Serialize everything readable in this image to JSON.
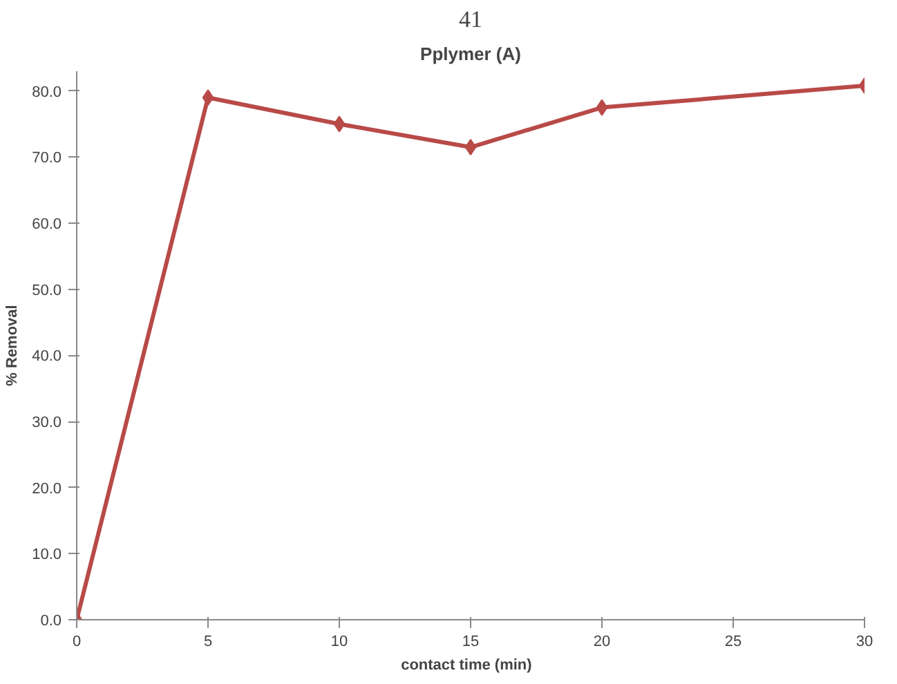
{
  "chart_data": {
    "type": "line",
    "title": "Pplymer (A)",
    "xlabel": "contact time   (min)",
    "ylabel": "% Removal",
    "annotations": [
      "41"
    ],
    "x": [
      0,
      5,
      10,
      15,
      20,
      30
    ],
    "series": [
      {
        "color": "#b84a48",
        "values": [
          0,
          79,
          75,
          71.5,
          77.5,
          80.8
        ]
      }
    ],
    "xlim": [
      0,
      30
    ],
    "xticks": [
      0,
      5,
      10,
      15,
      20,
      25,
      30
    ],
    "ylim": [
      0,
      83
    ],
    "yticks": [
      {
        "value": 0,
        "label": "0.0"
      },
      {
        "value": 10,
        "label": "10.0"
      },
      {
        "value": 20,
        "label": "20.0"
      },
      {
        "value": 30,
        "label": "30.0"
      },
      {
        "value": 40,
        "label": "40.0"
      },
      {
        "value": 50,
        "label": "50.0"
      },
      {
        "value": 60,
        "label": "60.0"
      },
      {
        "value": 70,
        "label": "70.0"
      },
      {
        "value": 80,
        "label": "80.0"
      }
    ],
    "grid": false,
    "marker": "diamond",
    "line_style": "solid"
  }
}
